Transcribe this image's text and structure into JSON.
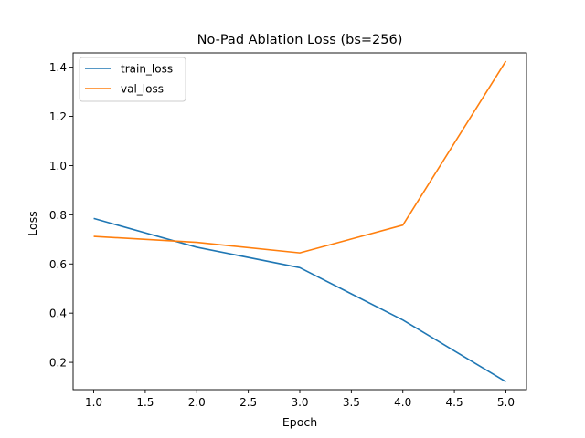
{
  "chart_data": {
    "type": "line",
    "title": "No-Pad Ablation Loss (bs=256)",
    "xlabel": "Epoch",
    "ylabel": "Loss",
    "x": [
      1,
      2,
      3,
      4,
      5
    ],
    "series": [
      {
        "name": "train_loss",
        "color": "#1f77b4",
        "values": [
          0.785,
          0.668,
          0.585,
          0.372,
          0.121
        ]
      },
      {
        "name": "val_loss",
        "color": "#ff7f0e",
        "values": [
          0.712,
          0.688,
          0.645,
          0.758,
          1.425
        ]
      }
    ],
    "xlim": [
      0.8,
      5.2
    ],
    "ylim": [
      0.089,
      1.458
    ],
    "xticks": [
      1.0,
      1.5,
      2.0,
      2.5,
      3.0,
      3.5,
      4.0,
      4.5,
      5.0
    ],
    "xtick_labels": [
      "1.0",
      "1.5",
      "2.0",
      "2.5",
      "3.0",
      "3.5",
      "4.0",
      "4.5",
      "5.0"
    ],
    "yticks": [
      0.2,
      0.4,
      0.6,
      0.8,
      1.0,
      1.2,
      1.4
    ],
    "ytick_labels": [
      "0.2",
      "0.4",
      "0.6",
      "0.8",
      "1.0",
      "1.2",
      "1.4"
    ],
    "grid": false,
    "legend_position": "top-left"
  }
}
